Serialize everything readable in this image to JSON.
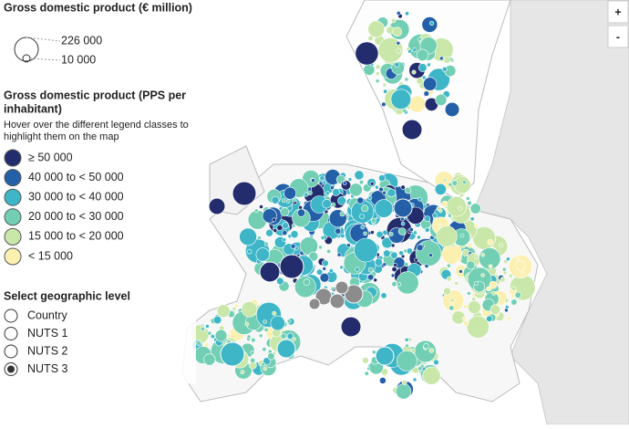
{
  "size_legend": {
    "title": "Gross domestic product (€ million)",
    "labels": [
      "226 000",
      "10 000"
    ]
  },
  "color_legend": {
    "title": [
      "Gross domestic product (PPS per",
      "inhabitant)"
    ],
    "hint": [
      "Hover over the different legend classes to",
      "highlight them on the map"
    ],
    "classes": [
      {
        "label": "≥ 50 000",
        "color": "#232d6e"
      },
      {
        "label": "40 000 to < 50 000",
        "color": "#2460a7"
      },
      {
        "label": "30 000 to < 40 000",
        "color": "#3eb6c8"
      },
      {
        "label": "20 000 to < 30 000",
        "color": "#72cfb4"
      },
      {
        "label": "15 000 to < 20 000",
        "color": "#c9e7a8"
      },
      {
        "label": "< 15 000",
        "color": "#fbf0b0"
      }
    ]
  },
  "level_selector": {
    "title": "Select geographic level",
    "options": [
      "Country",
      "NUTS 1",
      "NUTS 2",
      "NUTS 3"
    ],
    "selected": 3
  },
  "zoom": {
    "in": "+",
    "out": "-"
  }
}
